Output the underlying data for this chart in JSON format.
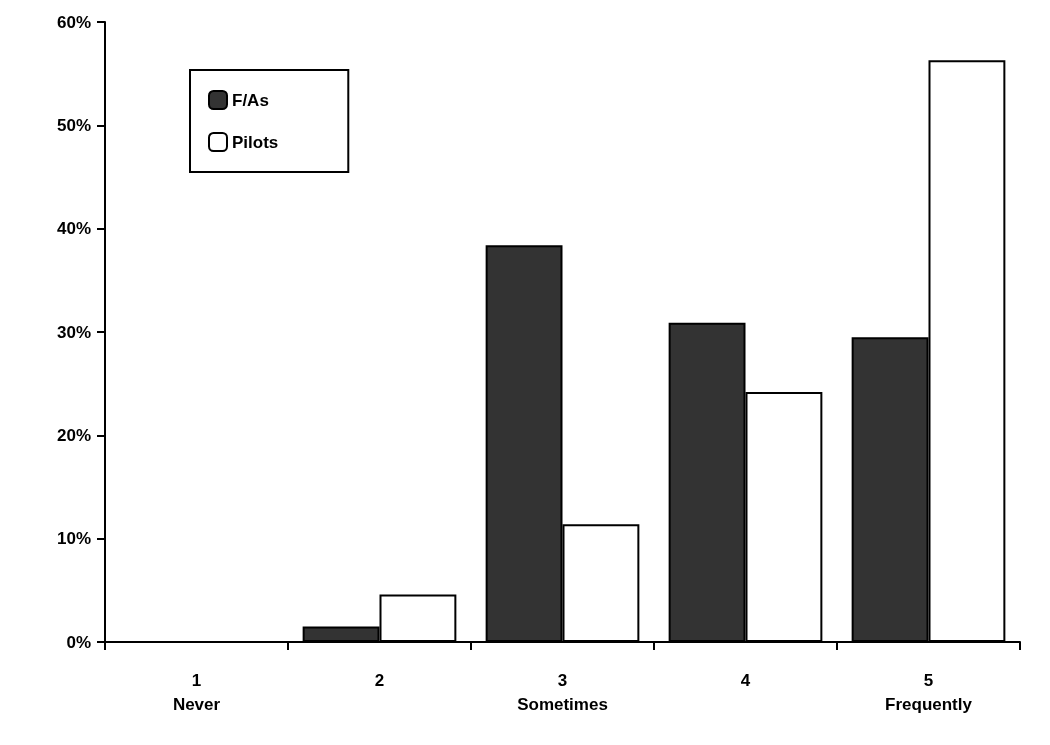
{
  "chart_data": {
    "type": "bar",
    "categories": [
      "1\nNever",
      "2",
      "3\nSometimes",
      "4",
      "5\nFrequently"
    ],
    "series": [
      {
        "name": "F/As",
        "color": "#333333",
        "values": [
          0,
          1.5,
          38.4,
          30.9,
          29.5
        ]
      },
      {
        "name": "Pilots",
        "color": "#ffffff",
        "values": [
          0,
          4.6,
          11.4,
          24.2,
          56.3
        ]
      }
    ],
    "ylim": [
      0,
      60
    ],
    "yticks": [
      {
        "value": 0,
        "label": "0%"
      },
      {
        "value": 10,
        "label": "10%"
      },
      {
        "value": 20,
        "label": "20%"
      },
      {
        "value": 30,
        "label": "30%"
      },
      {
        "value": 40,
        "label": "40%"
      },
      {
        "value": 50,
        "label": "50%"
      },
      {
        "value": 60,
        "label": "60%"
      }
    ],
    "grid": false,
    "legend": "top left"
  }
}
